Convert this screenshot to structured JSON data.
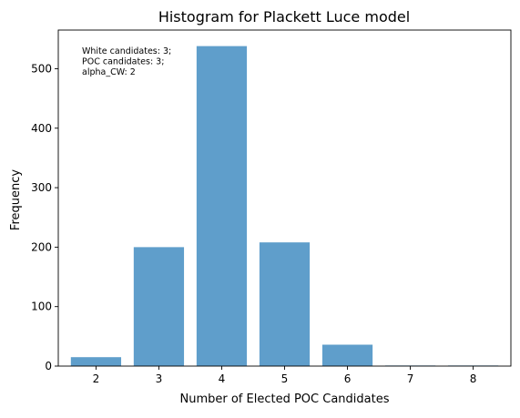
{
  "chart_data": {
    "type": "bar",
    "title": "Histogram for Plackett Luce model",
    "xlabel": "Number of Elected POC Candidates",
    "ylabel": "Frequency",
    "categories": [
      "2",
      "3",
      "4",
      "5",
      "6",
      "7",
      "8"
    ],
    "x": [
      2,
      3,
      4,
      5,
      6,
      7,
      8
    ],
    "values": [
      15,
      200,
      538,
      208,
      36,
      1,
      1
    ],
    "xlim": [
      1.4,
      8.6
    ],
    "ylim": [
      0,
      565
    ],
    "yticks": [
      0,
      100,
      200,
      300,
      400,
      500
    ],
    "grid": false,
    "bar_color": "#5f9ecb",
    "annotation": [
      "White candidates: 3;",
      "POC candidates: 3;",
      "alpha_CW: 2"
    ]
  }
}
